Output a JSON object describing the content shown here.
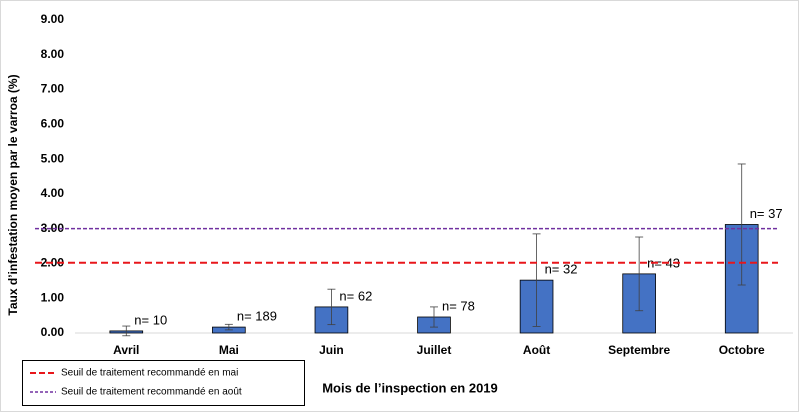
{
  "chart_data": {
    "type": "bar",
    "y_label": "Taux d’infestation moyen par le varroa (%)",
    "x_label": "Mois de l’inspection en 2019",
    "categories": [
      "Avril",
      "Mai",
      "Juin",
      "Juillet",
      "Août",
      "Septembre",
      "Octobre"
    ],
    "values": [
      0.06,
      0.17,
      0.75,
      0.46,
      1.52,
      1.7,
      3.12
    ],
    "errors": [
      0.14,
      0.08,
      0.51,
      0.29,
      1.33,
      1.06,
      1.74
    ],
    "annotations": [
      "n= 10",
      "n= 189",
      "n= 62",
      "n= 78",
      "n= 32",
      "n= 43",
      "n= 37"
    ],
    "color": "#4472c4",
    "reference_lines": [
      {
        "name": "Seuil de traitement recommandé en mai",
        "value": 2.02,
        "color": "#e8161b"
      },
      {
        "name": "Seuil de traitement recommandé en août",
        "value": 3.0,
        "color": "#7030a0"
      }
    ],
    "ylim": [
      0,
      9
    ],
    "yticks": [
      {
        "value": 0,
        "label": "0.00"
      },
      {
        "value": 1,
        "label": "1.00"
      },
      {
        "value": 2,
        "label": "2.00"
      },
      {
        "value": 3,
        "label": "3.00"
      },
      {
        "value": 4,
        "label": "4.00"
      },
      {
        "value": 5,
        "label": "5.00"
      },
      {
        "value": 6,
        "label": "6.00"
      },
      {
        "value": 7,
        "label": "7.00"
      },
      {
        "value": 8,
        "label": "8.00"
      },
      {
        "value": 9,
        "label": "9.00"
      }
    ],
    "grid": false
  }
}
